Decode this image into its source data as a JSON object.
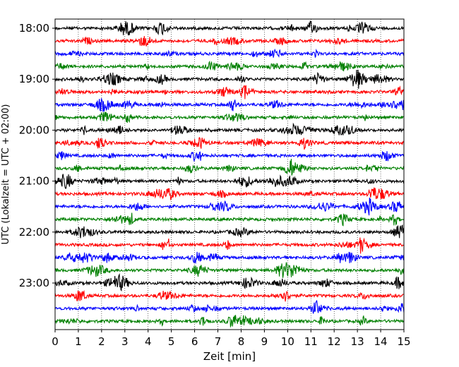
{
  "chart_data": {
    "type": "line",
    "subtype": "helicorder-seismogram",
    "title": "",
    "xlabel": "Zeit  [min]",
    "ylabel": "UTC (Lokalzeit = UTC + 02:00)",
    "xlim": [
      0,
      15
    ],
    "x_ticks": [
      "0",
      "1",
      "2",
      "3",
      "4",
      "5",
      "6",
      "7",
      "8",
      "9",
      "10",
      "11",
      "12",
      "13",
      "14",
      "15"
    ],
    "y_tick_labels": [
      "18:00",
      "19:00",
      "20:00",
      "21:00",
      "22:00",
      "23:00"
    ],
    "grid": {
      "x": "dotted-vertical",
      "y": false
    },
    "colors_cycle": [
      "#000000",
      "#ff0000",
      "#0000ff",
      "#008000"
    ],
    "traces": [
      {
        "start": "18:00",
        "color": "#000000"
      },
      {
        "start": "18:15",
        "color": "#ff0000"
      },
      {
        "start": "18:30",
        "color": "#0000ff"
      },
      {
        "start": "18:45",
        "color": "#008000"
      },
      {
        "start": "19:00",
        "color": "#000000"
      },
      {
        "start": "19:15",
        "color": "#ff0000"
      },
      {
        "start": "19:30",
        "color": "#0000ff"
      },
      {
        "start": "19:45",
        "color": "#008000"
      },
      {
        "start": "20:00",
        "color": "#000000"
      },
      {
        "start": "20:15",
        "color": "#ff0000"
      },
      {
        "start": "20:30",
        "color": "#0000ff"
      },
      {
        "start": "20:45",
        "color": "#008000"
      },
      {
        "start": "21:00",
        "color": "#000000"
      },
      {
        "start": "21:15",
        "color": "#ff0000"
      },
      {
        "start": "21:30",
        "color": "#0000ff"
      },
      {
        "start": "21:45",
        "color": "#008000"
      },
      {
        "start": "22:00",
        "color": "#000000"
      },
      {
        "start": "22:15",
        "color": "#ff0000"
      },
      {
        "start": "22:30",
        "color": "#0000ff"
      },
      {
        "start": "22:45",
        "color": "#008000"
      },
      {
        "start": "23:00",
        "color": "#000000"
      },
      {
        "start": "23:15",
        "color": "#ff0000"
      },
      {
        "start": "23:30",
        "color": "#0000ff"
      },
      {
        "start": "23:45",
        "color": "#008000"
      }
    ]
  }
}
